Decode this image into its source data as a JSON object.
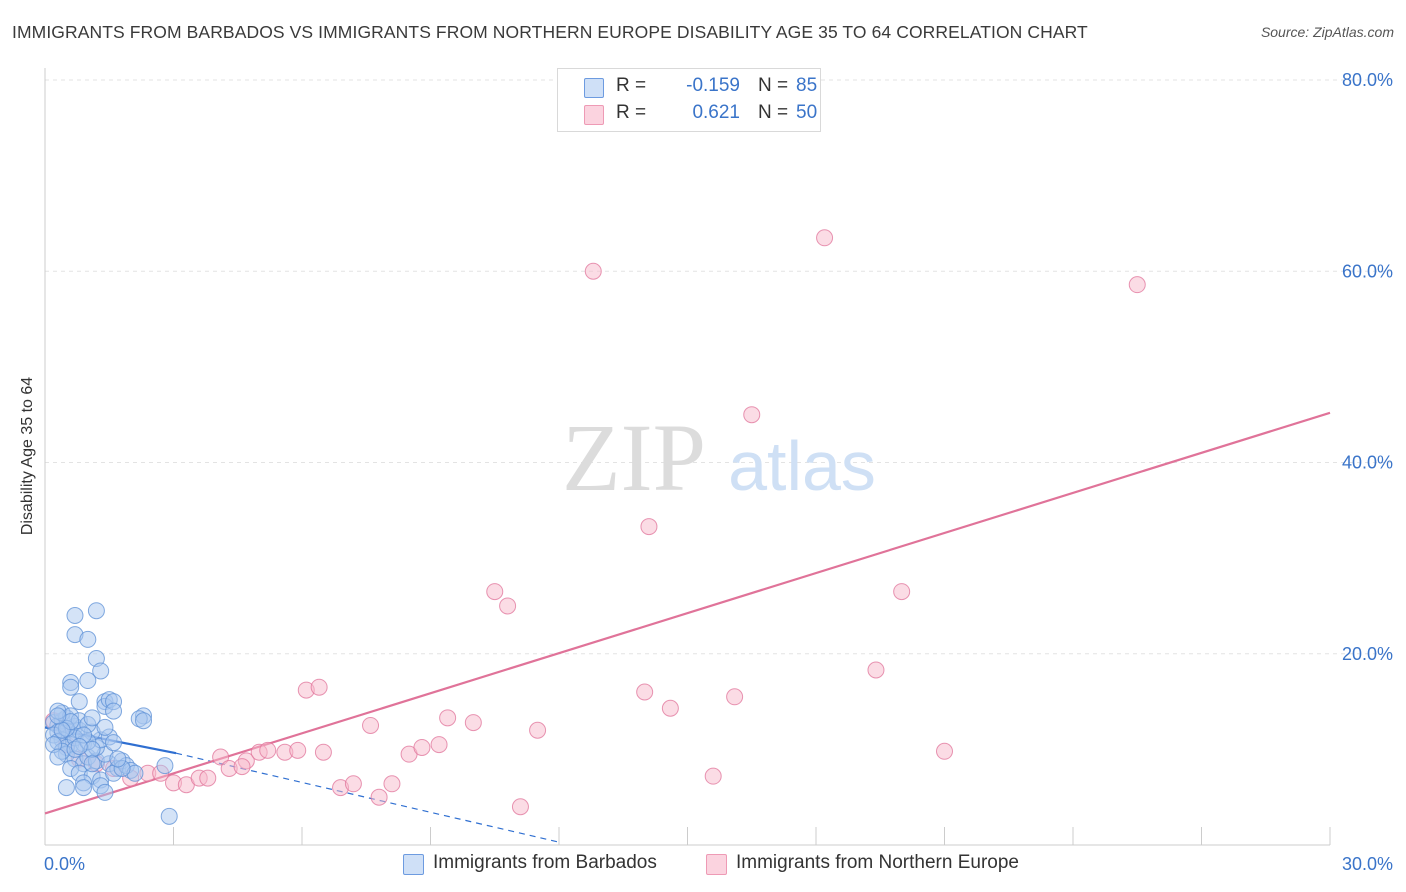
{
  "title": "IMMIGRANTS FROM BARBADOS VS IMMIGRANTS FROM NORTHERN EUROPE DISABILITY AGE 35 TO 64 CORRELATION CHART",
  "source": "Source: ZipAtlas.com",
  "watermark": {
    "zip": "ZIP",
    "atlas": "atlas"
  },
  "legend_stats": [
    {
      "r_label": "R =",
      "r_value": "-0.159",
      "n_label": "N =",
      "n_value": "85",
      "color": "#a9c8f0"
    },
    {
      "r_label": "R =",
      "r_value": "0.621",
      "n_label": "N =",
      "n_value": "50",
      "color": "#f7b9cb"
    }
  ],
  "chart_data": {
    "type": "scatter",
    "title": "IMMIGRANTS FROM BARBADOS VS IMMIGRANTS FROM NORTHERN EUROPE DISABILITY AGE 35 TO 64 CORRELATION CHART",
    "xlabel": "",
    "ylabel": "Disability Age 35 to 64",
    "xlim": [
      0,
      30
    ],
    "ylim": [
      0,
      80
    ],
    "x_tick_labels": [
      "0.0%",
      "30.0%"
    ],
    "y_tick_labels": [
      "20.0%",
      "40.0%",
      "60.0%",
      "80.0%"
    ],
    "y_ticks": [
      20,
      40,
      60,
      80
    ],
    "grid": true,
    "legend_position": "bottom",
    "series": [
      {
        "name": "Immigrants from Barbados",
        "color": "#5b8fd6",
        "fill": "#a9c8f0",
        "trend": {
          "x": [
            0,
            3.06
          ],
          "y": [
            12.3,
            9.6
          ],
          "dash_to": [
            12.0,
            0.3
          ]
        },
        "points": [
          [
            0.3,
            12.5
          ],
          [
            0.4,
            13.0
          ],
          [
            0.5,
            12.0
          ],
          [
            0.6,
            11.5
          ],
          [
            0.2,
            12.8
          ],
          [
            0.3,
            11.8
          ],
          [
            0.5,
            13.3
          ],
          [
            0.7,
            12.4
          ],
          [
            0.4,
            11.0
          ],
          [
            0.6,
            10.5
          ],
          [
            0.8,
            12.0
          ],
          [
            0.2,
            11.5
          ],
          [
            0.3,
            10.8
          ],
          [
            0.5,
            10.2
          ],
          [
            0.7,
            11.2
          ],
          [
            0.9,
            10.6
          ],
          [
            0.4,
            13.8
          ],
          [
            0.6,
            13.5
          ],
          [
            0.3,
            14.0
          ],
          [
            0.8,
            13.0
          ],
          [
            0.5,
            9.5
          ],
          [
            0.7,
            9.0
          ],
          [
            0.9,
            8.5
          ],
          [
            1.0,
            9.2
          ],
          [
            1.2,
            8.8
          ],
          [
            0.6,
            8.0
          ],
          [
            0.8,
            7.5
          ],
          [
            1.1,
            7.2
          ],
          [
            1.3,
            6.8
          ],
          [
            0.9,
            6.5
          ],
          [
            1.5,
            8.5
          ],
          [
            1.7,
            8.0
          ],
          [
            1.6,
            7.5
          ],
          [
            1.8,
            8.8
          ],
          [
            1.9,
            8.3
          ],
          [
            2.0,
            7.8
          ],
          [
            2.1,
            7.5
          ],
          [
            1.4,
            9.5
          ],
          [
            1.2,
            10.2
          ],
          [
            1.3,
            11.0
          ],
          [
            1.1,
            11.8
          ],
          [
            1.0,
            12.6
          ],
          [
            1.5,
            11.3
          ],
          [
            1.6,
            10.7
          ],
          [
            1.4,
            12.3
          ],
          [
            0.7,
            24.0
          ],
          [
            1.2,
            24.5
          ],
          [
            0.7,
            22.0
          ],
          [
            1.0,
            21.5
          ],
          [
            1.2,
            19.5
          ],
          [
            1.3,
            18.2
          ],
          [
            0.6,
            17.0
          ],
          [
            0.6,
            16.5
          ],
          [
            1.0,
            17.2
          ],
          [
            0.8,
            15.0
          ],
          [
            1.4,
            15.0
          ],
          [
            1.4,
            14.5
          ],
          [
            1.5,
            15.2
          ],
          [
            1.6,
            15.0
          ],
          [
            1.1,
            13.3
          ],
          [
            1.6,
            14.0
          ],
          [
            2.3,
            13.5
          ],
          [
            2.2,
            13.2
          ],
          [
            2.3,
            13.0
          ],
          [
            2.8,
            8.3
          ],
          [
            2.9,
            3.0
          ],
          [
            0.5,
            6.0
          ],
          [
            0.9,
            6.0
          ],
          [
            1.3,
            6.2
          ],
          [
            1.4,
            5.5
          ],
          [
            0.4,
            9.8
          ],
          [
            0.7,
            10.0
          ],
          [
            1.0,
            10.8
          ],
          [
            0.2,
            10.5
          ],
          [
            0.3,
            9.2
          ],
          [
            1.1,
            10.0
          ],
          [
            1.8,
            8.0
          ],
          [
            0.5,
            12.2
          ],
          [
            0.6,
            12.9
          ],
          [
            0.9,
            11.5
          ],
          [
            0.4,
            12.0
          ],
          [
            0.3,
            13.5
          ],
          [
            1.1,
            8.5
          ],
          [
            1.7,
            9.0
          ],
          [
            0.8,
            10.3
          ]
        ]
      },
      {
        "name": "Immigrants from Northern Europe",
        "color": "#e07399",
        "fill": "#f7b9cb",
        "trend": {
          "x": [
            0,
            30
          ],
          "y": [
            3.3,
            45.2
          ]
        },
        "points": [
          [
            0.2,
            13.0
          ],
          [
            0.4,
            12.0
          ],
          [
            0.5,
            10.5
          ],
          [
            0.8,
            9.0
          ],
          [
            1.2,
            8.5
          ],
          [
            1.6,
            8.0
          ],
          [
            2.0,
            7.0
          ],
          [
            2.4,
            7.5
          ],
          [
            2.7,
            7.5
          ],
          [
            3.0,
            6.5
          ],
          [
            3.3,
            6.3
          ],
          [
            3.6,
            7.0
          ],
          [
            3.8,
            7.0
          ],
          [
            4.1,
            9.2
          ],
          [
            4.3,
            8.0
          ],
          [
            4.7,
            8.8
          ],
          [
            5.0,
            9.7
          ],
          [
            5.2,
            9.9
          ],
          [
            5.6,
            9.7
          ],
          [
            5.9,
            9.9
          ],
          [
            6.1,
            16.2
          ],
          [
            6.4,
            16.5
          ],
          [
            6.5,
            9.7
          ],
          [
            6.9,
            6.0
          ],
          [
            7.2,
            6.4
          ],
          [
            7.6,
            12.5
          ],
          [
            7.8,
            5.0
          ],
          [
            8.1,
            6.4
          ],
          [
            8.5,
            9.5
          ],
          [
            8.8,
            10.2
          ],
          [
            9.2,
            10.5
          ],
          [
            9.4,
            13.3
          ],
          [
            10.0,
            12.8
          ],
          [
            10.5,
            26.5
          ],
          [
            10.8,
            25.0
          ],
          [
            11.1,
            4.0
          ],
          [
            11.5,
            12.0
          ],
          [
            12.8,
            60.0
          ],
          [
            14.0,
            16.0
          ],
          [
            14.1,
            33.3
          ],
          [
            14.6,
            14.3
          ],
          [
            15.6,
            7.2
          ],
          [
            16.1,
            15.5
          ],
          [
            16.5,
            45.0
          ],
          [
            18.2,
            63.5
          ],
          [
            19.4,
            18.3
          ],
          [
            20.0,
            26.5
          ],
          [
            21.0,
            9.8
          ],
          [
            25.5,
            58.6
          ],
          [
            4.6,
            8.2
          ]
        ]
      }
    ]
  },
  "bottom_legend": [
    {
      "label": "Immigrants from Barbados",
      "color": "#a9c8f0"
    },
    {
      "label": "Immigrants from Northern Europe",
      "color": "#f7b9cb"
    }
  ]
}
